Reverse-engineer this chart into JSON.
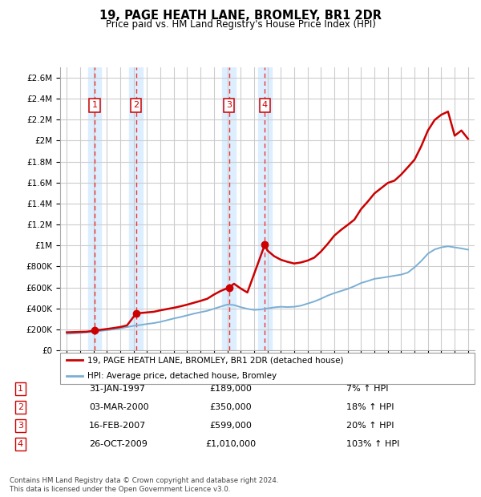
{
  "title": "19, PAGE HEATH LANE, BROMLEY, BR1 2DR",
  "subtitle": "Price paid vs. HM Land Registry's House Price Index (HPI)",
  "footer": "Contains HM Land Registry data © Crown copyright and database right 2024.\nThis data is licensed under the Open Government Licence v3.0.",
  "legend_property": "19, PAGE HEATH LANE, BROMLEY, BR1 2DR (detached house)",
  "legend_hpi": "HPI: Average price, detached house, Bromley",
  "sale_events": [
    {
      "num": 1,
      "date": "31-JAN-1997",
      "price": 189000,
      "pct": "7%",
      "x_year": 1997.08
    },
    {
      "num": 2,
      "date": "03-MAR-2000",
      "price": 350000,
      "pct": "18%",
      "x_year": 2000.17
    },
    {
      "num": 3,
      "date": "16-FEB-2007",
      "price": 599000,
      "pct": "20%",
      "x_year": 2007.12
    },
    {
      "num": 4,
      "date": "26-OCT-2009",
      "price": 1010000,
      "pct": "103%",
      "x_year": 2009.81
    }
  ],
  "ylim": [
    0,
    2700000
  ],
  "xlim": [
    1994.5,
    2025.5
  ],
  "yticks": [
    0,
    200000,
    400000,
    600000,
    800000,
    1000000,
    1200000,
    1400000,
    1600000,
    1800000,
    2000000,
    2200000,
    2400000,
    2600000
  ],
  "xticks": [
    1995,
    1996,
    1997,
    1998,
    1999,
    2000,
    2001,
    2002,
    2003,
    2004,
    2005,
    2006,
    2007,
    2008,
    2009,
    2010,
    2011,
    2012,
    2013,
    2014,
    2015,
    2016,
    2017,
    2018,
    2019,
    2020,
    2021,
    2022,
    2023,
    2024,
    2025
  ],
  "property_line_color": "#cc0000",
  "hpi_line_color": "#7bafd4",
  "vline_color": "#ee3333",
  "sale_box_color": "#cc0000",
  "background_color": "#ffffff",
  "plot_bg_color": "#ffffff",
  "grid_color": "#cccccc",
  "band_color": "#ddeeff",
  "property_x": [
    1995.0,
    1995.5,
    1996.0,
    1996.5,
    1997.08,
    1997.5,
    1998.0,
    1998.5,
    1999.0,
    1999.5,
    2000.17,
    2000.5,
    2001.0,
    2001.5,
    2002.0,
    2002.5,
    2003.0,
    2003.5,
    2004.0,
    2004.5,
    2005.0,
    2005.5,
    2006.0,
    2006.5,
    2007.12,
    2007.5,
    2008.0,
    2008.5,
    2009.81,
    2010.0,
    2010.5,
    2011.0,
    2011.5,
    2012.0,
    2012.5,
    2013.0,
    2013.5,
    2014.0,
    2014.5,
    2015.0,
    2015.5,
    2016.0,
    2016.5,
    2017.0,
    2017.5,
    2018.0,
    2018.5,
    2019.0,
    2019.5,
    2020.0,
    2020.5,
    2021.0,
    2021.5,
    2022.0,
    2022.5,
    2023.0,
    2023.5,
    2024.0,
    2024.5,
    2025.0
  ],
  "property_y": [
    172000,
    174000,
    176000,
    178000,
    189000,
    196000,
    204000,
    213000,
    223000,
    238000,
    350000,
    356000,
    362000,
    368000,
    382000,
    394000,
    406000,
    420000,
    436000,
    454000,
    472000,
    492000,
    532000,
    566000,
    599000,
    635000,
    590000,
    552000,
    1010000,
    952000,
    898000,
    864000,
    844000,
    828000,
    838000,
    856000,
    884000,
    942000,
    1014000,
    1094000,
    1148000,
    1196000,
    1246000,
    1346000,
    1418000,
    1496000,
    1546000,
    1596000,
    1618000,
    1676000,
    1746000,
    1818000,
    1946000,
    2096000,
    2196000,
    2246000,
    2276000,
    2046000,
    2096000,
    2016000
  ],
  "hpi_x": [
    1995.0,
    1995.5,
    1996.0,
    1996.5,
    1997.0,
    1997.5,
    1998.0,
    1998.5,
    1999.0,
    1999.5,
    2000.0,
    2000.5,
    2001.0,
    2001.5,
    2002.0,
    2002.5,
    2003.0,
    2003.5,
    2004.0,
    2004.5,
    2005.0,
    2005.5,
    2006.0,
    2006.5,
    2007.0,
    2007.5,
    2008.0,
    2008.5,
    2009.0,
    2009.5,
    2010.0,
    2010.5,
    2011.0,
    2011.5,
    2012.0,
    2012.5,
    2013.0,
    2013.5,
    2014.0,
    2014.5,
    2015.0,
    2015.5,
    2016.0,
    2016.5,
    2017.0,
    2017.5,
    2018.0,
    2018.5,
    2019.0,
    2019.5,
    2020.0,
    2020.5,
    2021.0,
    2021.5,
    2022.0,
    2022.5,
    2023.0,
    2023.5,
    2024.0,
    2024.5,
    2025.0
  ],
  "hpi_y": [
    158000,
    162000,
    166000,
    172000,
    178000,
    185000,
    192000,
    200000,
    210000,
    222000,
    234000,
    242000,
    252000,
    260000,
    272000,
    288000,
    304000,
    318000,
    334000,
    350000,
    364000,
    377000,
    397000,
    417000,
    437000,
    432000,
    412000,
    396000,
    386000,
    390000,
    400000,
    410000,
    416000,
    413000,
    416000,
    426000,
    446000,
    466000,
    492000,
    522000,
    546000,
    566000,
    586000,
    612000,
    642000,
    661000,
    682000,
    691000,
    701000,
    712000,
    722000,
    742000,
    792000,
    852000,
    922000,
    962000,
    982000,
    992000,
    982000,
    972000,
    960000
  ]
}
